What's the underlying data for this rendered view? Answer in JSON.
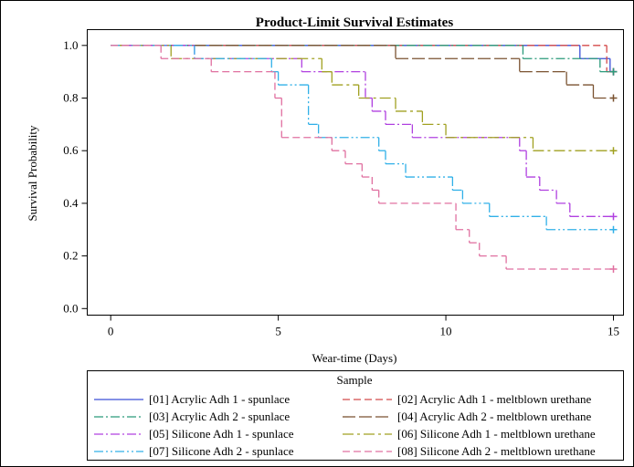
{
  "chart_data": {
    "type": "step",
    "title": "Product-Limit Survival Estimates",
    "x_label": "Wear-time (Days)",
    "y_label": "Survival Probability",
    "legend_title": "Sample",
    "xlim": [
      -0.7,
      15.3
    ],
    "ylim": [
      -0.025,
      1.06
    ],
    "xticks": [
      0,
      5,
      10,
      15
    ],
    "yticks": [
      {
        "value": 0,
        "label": "0.0"
      },
      {
        "value": 0.2,
        "label": "0.2"
      },
      {
        "value": 0.4,
        "label": "0.4"
      },
      {
        "value": 0.6,
        "label": "0.6"
      },
      {
        "value": 0.8,
        "label": "0.8"
      },
      {
        "value": 1,
        "label": "1.0"
      }
    ],
    "series": [
      {
        "name": "[01] Acrylic Adh 1 - spunlace",
        "color": "#3a4fd8",
        "dash": "none",
        "x": [
          0,
          14,
          14.9,
          15
        ],
        "values": [
          1,
          0.95,
          0.9,
          0.9
        ]
      },
      {
        "name": "[02] Acrylic Adh 1 - meltblown urethane",
        "color": "#d44a4a",
        "dash": "8 4",
        "x": [
          0,
          14.8,
          15
        ],
        "values": [
          1,
          0.9,
          0.9
        ]
      },
      {
        "name": "[03] Acrylic Adh 2 - spunlace",
        "color": "#2a9a7a",
        "dash": "10 3 2 3",
        "x": [
          0,
          12.3,
          14.6,
          15
        ],
        "values": [
          1,
          0.95,
          0.9,
          0.9
        ]
      },
      {
        "name": "[04] Acrylic Adh 2 - meltblown urethane",
        "color": "#7a5230",
        "dash": "14 4",
        "x": [
          0,
          8.5,
          12.2,
          13.6,
          14.4,
          15
        ],
        "values": [
          1,
          0.95,
          0.9,
          0.85,
          0.8,
          0.8
        ]
      },
      {
        "name": "[05] Silicone Adh 1 - spunlace",
        "color": "#b040e0",
        "dash": "10 3 2 3",
        "x": [
          0,
          2.5,
          5.7,
          7.6,
          7.8,
          8.2,
          9.0,
          12.2,
          12.4,
          12.8,
          13.3,
          13.7,
          15
        ],
        "values": [
          1,
          0.95,
          0.9,
          0.8,
          0.75,
          0.7,
          0.65,
          0.6,
          0.5,
          0.45,
          0.4,
          0.35,
          0.35
        ]
      },
      {
        "name": "[06] Silicone Adh 1 - meltblown urethane",
        "color": "#a0a020",
        "dash": "12 4 3 4",
        "x": [
          0,
          1.8,
          6.3,
          6.6,
          7.4,
          8.5,
          9.3,
          10,
          12.6,
          15
        ],
        "values": [
          1,
          0.95,
          0.9,
          0.85,
          0.8,
          0.75,
          0.7,
          0.65,
          0.6,
          0.6
        ]
      },
      {
        "name": "[07] Silicone Adh 2 - spunlace",
        "color": "#30b0e8",
        "dash": "10 3 2 3 2 3",
        "x": [
          0,
          2.5,
          4.8,
          5,
          5.9,
          6.2,
          8,
          8.2,
          8.8,
          10.2,
          10.5,
          11.3,
          13,
          15
        ],
        "values": [
          1,
          0.95,
          0.9,
          0.85,
          0.7,
          0.65,
          0.6,
          0.55,
          0.5,
          0.45,
          0.4,
          0.35,
          0.3,
          0.3
        ]
      },
      {
        "name": "[08] Silicone Adh 2 - meltblown urethane",
        "color": "#e070a0",
        "dash": "8 4",
        "x": [
          0,
          1.5,
          3,
          4.9,
          5.1,
          6.6,
          7,
          7.5,
          7.8,
          8,
          10.3,
          10.7,
          11,
          11.8,
          15
        ],
        "values": [
          1,
          0.95,
          0.9,
          0.8,
          0.65,
          0.6,
          0.55,
          0.5,
          0.45,
          0.4,
          0.3,
          0.25,
          0.2,
          0.15,
          0.15
        ]
      }
    ]
  }
}
